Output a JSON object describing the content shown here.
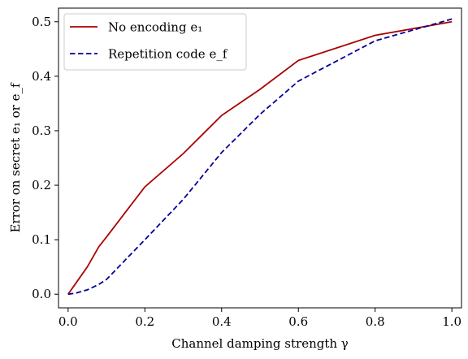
{
  "chart_data": {
    "type": "line",
    "xlabel": "Channel damping strength γ",
    "ylabel": "Error on secret e₁ or e_f",
    "xlim": [
      -0.025,
      1.025
    ],
    "ylim": [
      -0.025,
      0.525
    ],
    "xticks": [
      0.0,
      0.2,
      0.4,
      0.6,
      0.8,
      1.0
    ],
    "xtick_labels": [
      "0.0",
      "0.2",
      "0.4",
      "0.6",
      "0.8",
      "1.0"
    ],
    "yticks": [
      0.0,
      0.1,
      0.2,
      0.3,
      0.4,
      0.5
    ],
    "ytick_labels": [
      "0.0",
      "0.1",
      "0.2",
      "0.3",
      "0.4",
      "0.5"
    ],
    "grid": false,
    "legend_position": "top-left",
    "series": [
      {
        "name": "No encoding e₁",
        "color": "#aa0000",
        "style": "solid",
        "x": [
          0.0,
          0.02,
          0.05,
          0.08,
          0.1,
          0.2,
          0.3,
          0.4,
          0.5,
          0.6,
          0.8,
          1.0
        ],
        "y": [
          0.0,
          0.02,
          0.05,
          0.087,
          0.105,
          0.197,
          0.258,
          0.328,
          0.376,
          0.429,
          0.475,
          0.5
        ]
      },
      {
        "name": "Repetition code e_f",
        "color": "#000099",
        "style": "dashed",
        "x": [
          0.0,
          0.02,
          0.05,
          0.08,
          0.1,
          0.2,
          0.3,
          0.4,
          0.5,
          0.6,
          0.8,
          1.0
        ],
        "y": [
          0.0,
          0.002,
          0.008,
          0.018,
          0.027,
          0.1,
          0.174,
          0.26,
          0.33,
          0.391,
          0.465,
          0.505
        ]
      }
    ]
  }
}
